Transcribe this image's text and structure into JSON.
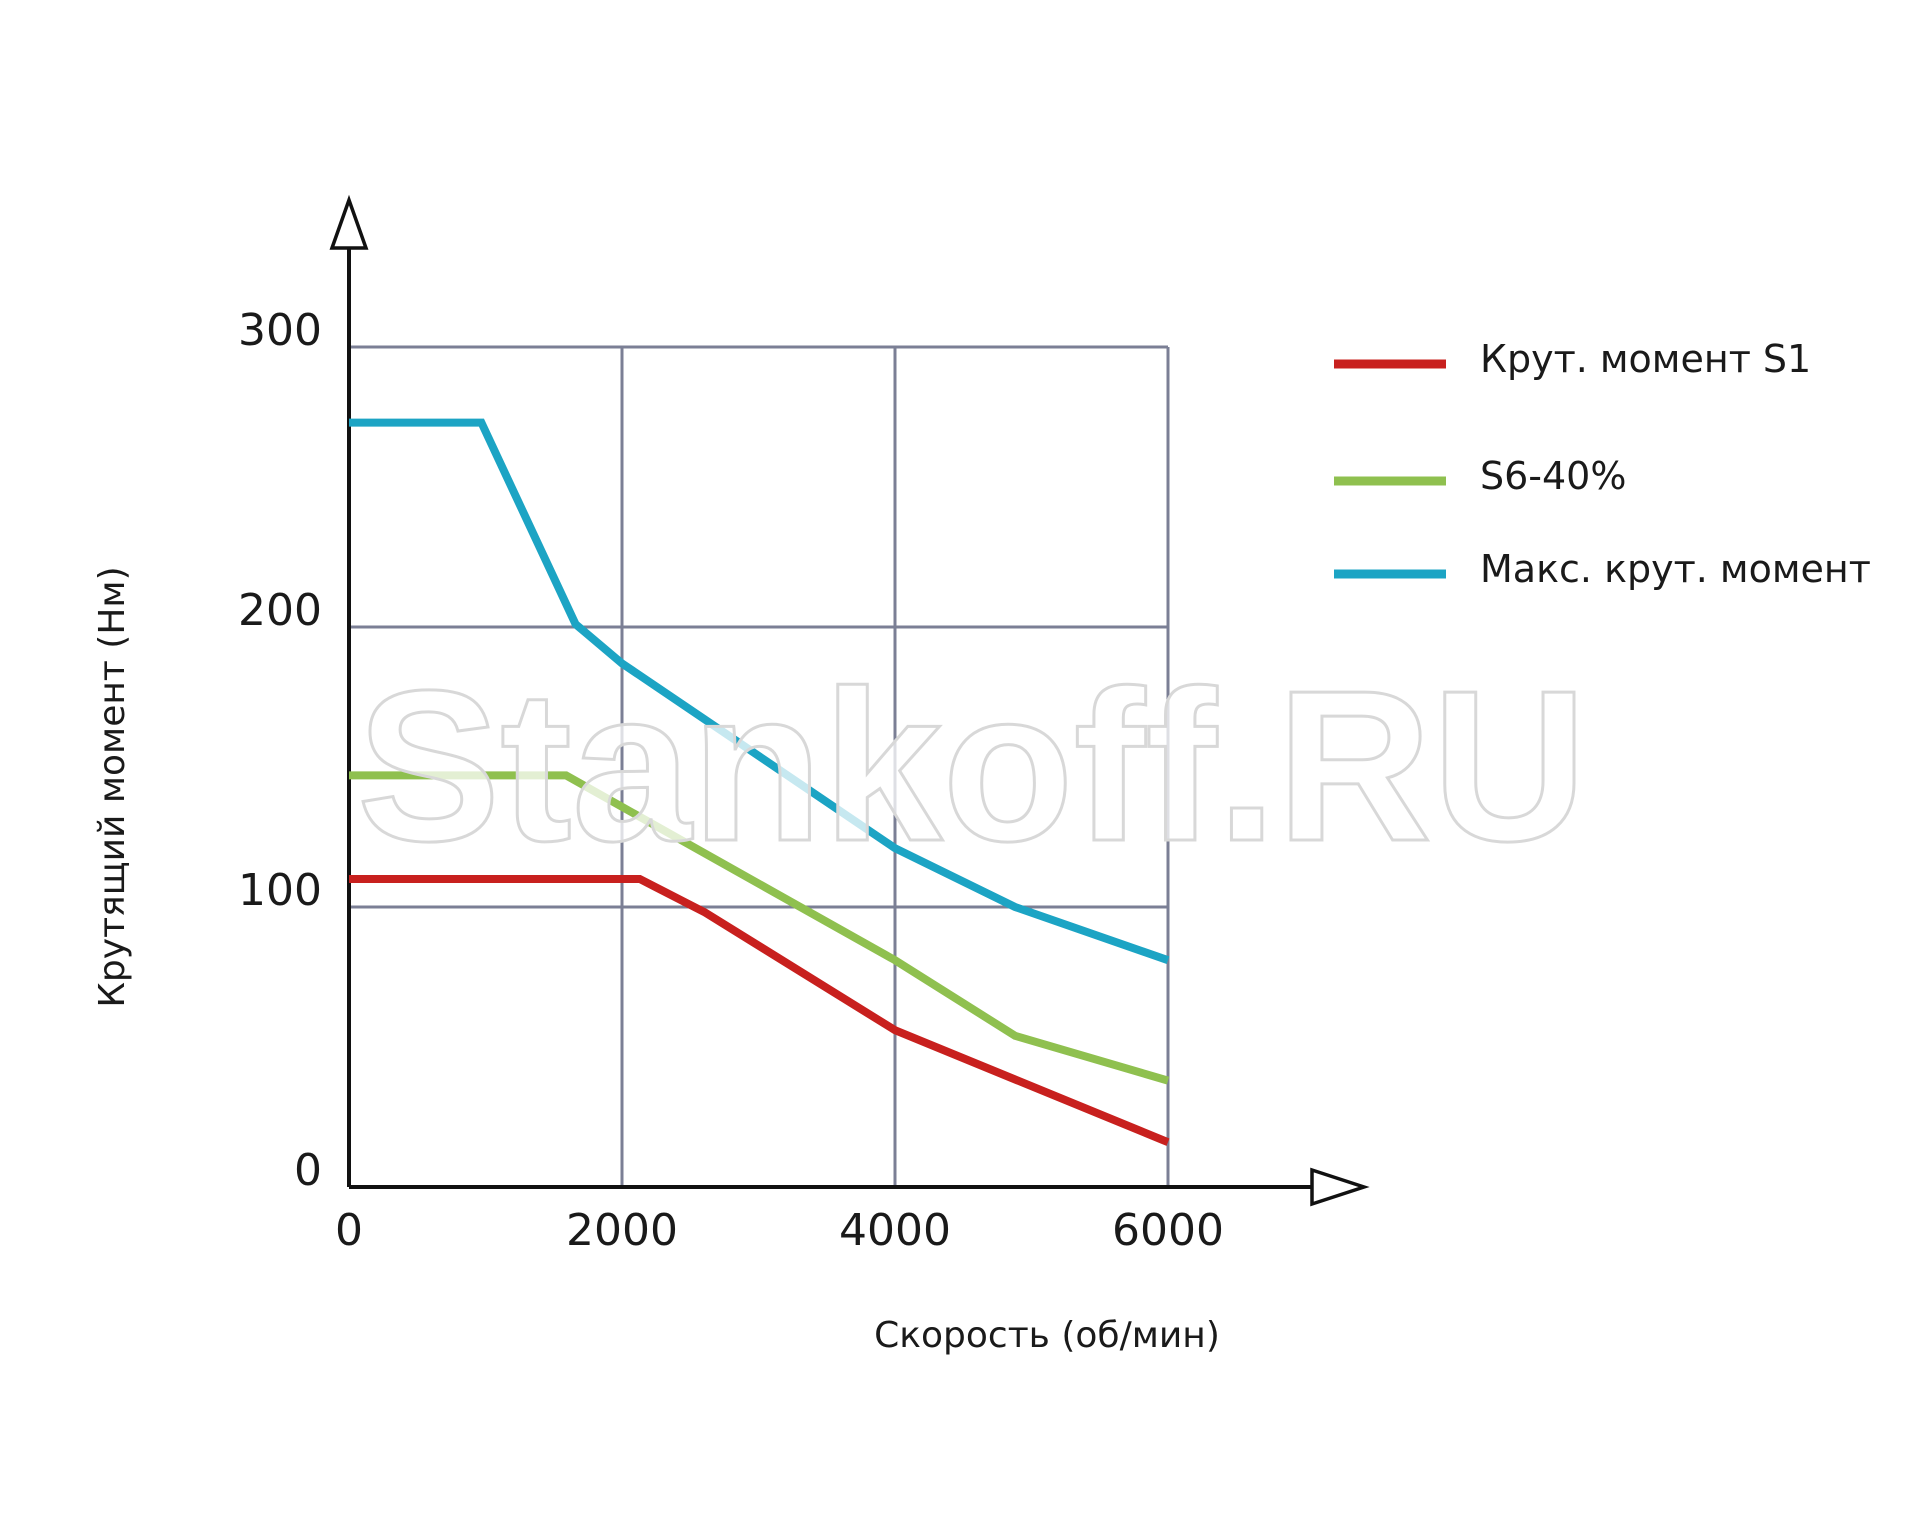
{
  "chart_data": {
    "type": "line",
    "xlabel": "Скорость (об/мин)",
    "ylabel": "Крутящий момент (Нм)",
    "watermark": "Stankoff.RU",
    "xlim": [
      0,
      6000
    ],
    "ylim": [
      0,
      300
    ],
    "xticks": [
      0,
      2000,
      4000,
      6000
    ],
    "yticks": [
      0,
      100,
      200,
      300
    ],
    "grid": true,
    "legend": "right",
    "series": [
      {
        "name": "Крут. момент S1",
        "color": "#c8201e",
        "x": [
          0,
          2130,
          2610,
          4000,
          6000
        ],
        "values": [
          110,
          110,
          98,
          56,
          16
        ]
      },
      {
        "name": "S6-40%",
        "color": "#8fc04f",
        "x": [
          0,
          1590,
          4000,
          4880,
          6000
        ],
        "values": [
          147,
          147,
          81,
          54,
          38
        ]
      },
      {
        "name": "Макс. крут. момент",
        "color": "#1ca4c4",
        "x": [
          0,
          970,
          1660,
          2000,
          4000,
          4880,
          6000
        ],
        "values": [
          273,
          273,
          201,
          187,
          121,
          100,
          81
        ]
      }
    ]
  }
}
